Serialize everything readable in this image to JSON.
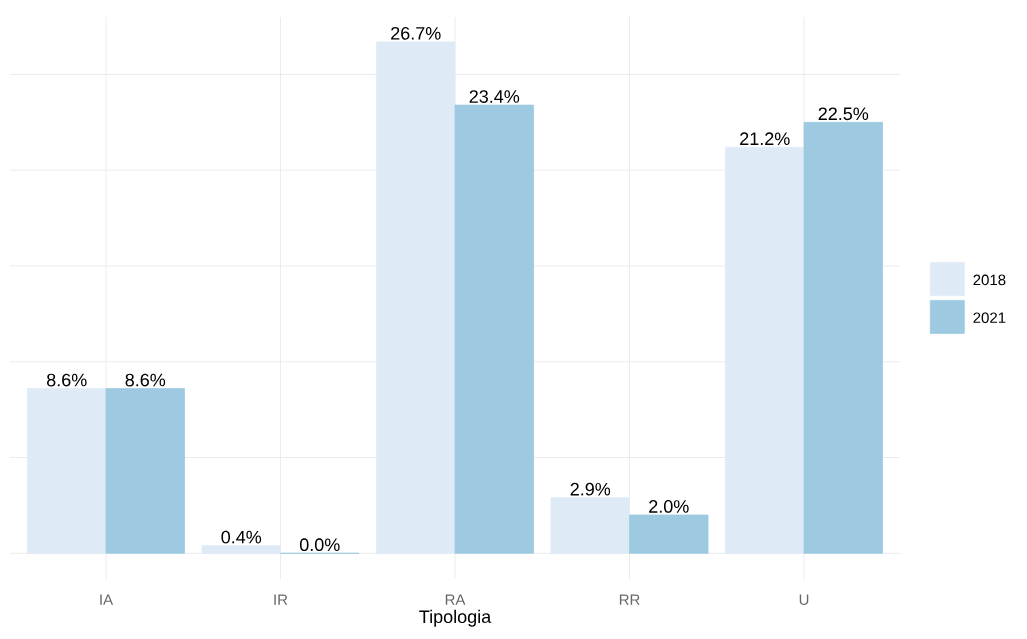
{
  "chart_data": {
    "type": "bar",
    "xlabel": "Tipologia",
    "categories": [
      "IA",
      "IR",
      "RA",
      "RR",
      "U"
    ],
    "series": [
      {
        "name": "2018",
        "color": "#deebf7",
        "values": [
          8.6,
          0.4,
          26.7,
          2.9,
          21.2
        ],
        "value_labels": [
          "8.6%",
          "0.4%",
          "26.7%",
          "2.9%",
          "21.2%"
        ]
      },
      {
        "name": "2021",
        "color": "#9ecae1",
        "values": [
          8.6,
          0.0,
          23.4,
          2.0,
          22.5
        ],
        "value_labels": [
          "8.6%",
          "0.0%",
          "23.4%",
          "2.0%",
          "22.5%"
        ]
      }
    ],
    "ylim": [
      -1.34,
      28.0
    ],
    "yticks": [
      {
        "value": 0,
        "label": null
      },
      {
        "value": 5,
        "label": null
      },
      {
        "value": 10,
        "label": null
      },
      {
        "value": 15,
        "label": null
      },
      {
        "value": 20,
        "label": null
      },
      {
        "value": 25,
        "label": null
      }
    ],
    "tick_labels": "x",
    "grid": true,
    "legend": "right"
  }
}
